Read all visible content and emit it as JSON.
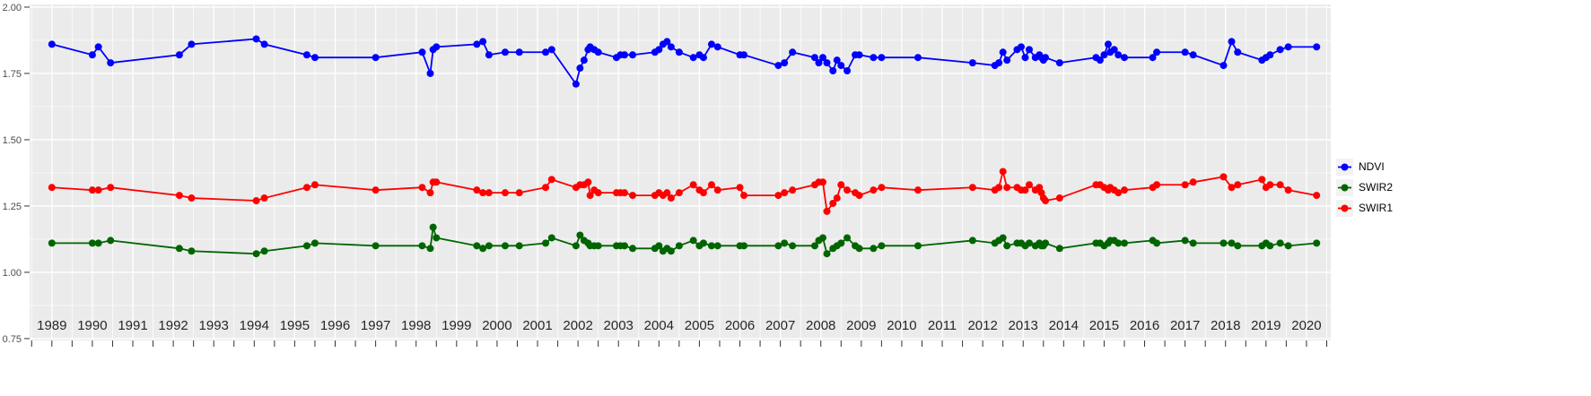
{
  "figure": {
    "background": "#FFFFFF",
    "panel_background": "#EBEBEB",
    "grid_color": "#FFFFFF",
    "axis_text_color": "#4D4D4D",
    "x_axis_text_color": "#262626",
    "tick_color": "#333333"
  },
  "legend": {
    "key_background": "#F2F2F2",
    "items": [
      {
        "label": "NDVI",
        "color": "#0000FF"
      },
      {
        "label": "SWIR2",
        "color": "#006400"
      },
      {
        "label": "SWIR1",
        "color": "#FF0000"
      }
    ]
  },
  "chart_data": {
    "type": "line",
    "title": "",
    "xlabel": "",
    "ylabel": "",
    "grid": true,
    "legend_position": "right",
    "point_radius": 4,
    "line_width": 1.8,
    "xlim": [
      1988.45,
      2020.6
    ],
    "ylim": [
      0.743,
      2.01
    ],
    "x_ticks": {
      "values": [
        1989,
        1990,
        1991,
        1992,
        1993,
        1994,
        1995,
        1996,
        1997,
        1998,
        1999,
        2000,
        2001,
        2002,
        2003,
        2004,
        2005,
        2006,
        2007,
        2008,
        2009,
        2010,
        2011,
        2012,
        2013,
        2014,
        2015,
        2016,
        2017,
        2018,
        2019,
        2020
      ],
      "labels": [
        "1989",
        "1990",
        "1991",
        "1992",
        "1993",
        "1994",
        "1995",
        "1996",
        "1997",
        "1998",
        "1999",
        "2000",
        "2001",
        "2002",
        "2003",
        "2004",
        "2005",
        "2006",
        "2007",
        "2008",
        "2009",
        "2010",
        "2011",
        "2012",
        "2013",
        "2014",
        "2015",
        "2016",
        "2017",
        "2018",
        "2019",
        "2020"
      ]
    },
    "y_ticks": {
      "values": [
        0.75,
        1.0,
        1.25,
        1.5,
        1.75,
        2.0
      ],
      "labels": [
        "0.75",
        "1.00",
        "1.25",
        "1.50",
        "1.75",
        "2.00"
      ]
    },
    "x": [
      1989.0,
      1990.0,
      1990.15,
      1990.45,
      1992.15,
      1992.45,
      1994.05,
      1994.25,
      1995.3,
      1995.5,
      1997.0,
      1998.15,
      1998.35,
      1998.42,
      1998.5,
      1999.5,
      1999.65,
      1999.8,
      2000.2,
      2000.55,
      2001.2,
      2001.35,
      2001.95,
      2002.05,
      2002.15,
      2002.25,
      2002.3,
      2002.4,
      2002.5,
      2002.95,
      2003.05,
      2003.15,
      2003.35,
      2003.9,
      2004.0,
      2004.1,
      2004.2,
      2004.3,
      2004.5,
      2004.85,
      2005.0,
      2005.1,
      2005.3,
      2005.45,
      2006.0,
      2006.1,
      2006.95,
      2007.1,
      2007.3,
      2007.85,
      2007.95,
      2008.05,
      2008.15,
      2008.3,
      2008.4,
      2008.5,
      2008.65,
      2008.85,
      2008.95,
      2009.3,
      2009.5,
      2010.4,
      2011.75,
      2012.3,
      2012.4,
      2012.5,
      2012.6,
      2012.85,
      2012.95,
      2013.05,
      2013.15,
      2013.3,
      2013.4,
      2013.45,
      2013.5,
      2013.55,
      2013.9,
      2014.8,
      2014.9,
      2015.0,
      2015.1,
      2015.15,
      2015.25,
      2015.35,
      2015.5,
      2016.2,
      2016.3,
      2017.0,
      2017.2,
      2017.95,
      2018.15,
      2018.3,
      2018.9,
      2019.0,
      2019.1,
      2019.35,
      2019.55,
      2020.25
    ],
    "series": [
      {
        "name": "NDVI",
        "color": "#0000FF",
        "values": [
          1.86,
          1.82,
          1.85,
          1.79,
          1.82,
          1.86,
          1.88,
          1.86,
          1.82,
          1.81,
          1.81,
          1.83,
          1.75,
          1.84,
          1.85,
          1.86,
          1.87,
          1.82,
          1.83,
          1.83,
          1.83,
          1.84,
          1.71,
          1.77,
          1.8,
          1.84,
          1.85,
          1.84,
          1.83,
          1.81,
          1.82,
          1.82,
          1.82,
          1.83,
          1.84,
          1.86,
          1.87,
          1.85,
          1.83,
          1.81,
          1.82,
          1.81,
          1.86,
          1.85,
          1.82,
          1.82,
          1.78,
          1.79,
          1.83,
          1.81,
          1.79,
          1.81,
          1.79,
          1.76,
          1.8,
          1.78,
          1.76,
          1.82,
          1.82,
          1.81,
          1.81,
          1.81,
          1.79,
          1.78,
          1.79,
          1.83,
          1.8,
          1.84,
          1.85,
          1.81,
          1.84,
          1.81,
          1.82,
          1.81,
          1.8,
          1.81,
          1.79,
          1.81,
          1.8,
          1.82,
          1.86,
          1.83,
          1.84,
          1.82,
          1.81,
          1.81,
          1.83,
          1.83,
          1.82,
          1.78,
          1.87,
          1.83,
          1.8,
          1.81,
          1.82,
          1.84,
          1.85,
          1.85
        ]
      },
      {
        "name": "SWIR2",
        "color": "#006400",
        "values": [
          1.11,
          1.11,
          1.11,
          1.12,
          1.09,
          1.08,
          1.07,
          1.08,
          1.1,
          1.11,
          1.1,
          1.1,
          1.09,
          1.17,
          1.13,
          1.1,
          1.09,
          1.1,
          1.1,
          1.1,
          1.11,
          1.13,
          1.1,
          1.14,
          1.12,
          1.11,
          1.1,
          1.1,
          1.1,
          1.1,
          1.1,
          1.1,
          1.09,
          1.09,
          1.1,
          1.08,
          1.09,
          1.08,
          1.1,
          1.12,
          1.1,
          1.11,
          1.1,
          1.1,
          1.1,
          1.1,
          1.1,
          1.11,
          1.1,
          1.1,
          1.12,
          1.13,
          1.07,
          1.09,
          1.1,
          1.11,
          1.13,
          1.1,
          1.09,
          1.09,
          1.1,
          1.1,
          1.12,
          1.11,
          1.12,
          1.13,
          1.1,
          1.11,
          1.11,
          1.1,
          1.11,
          1.1,
          1.11,
          1.1,
          1.1,
          1.11,
          1.09,
          1.11,
          1.11,
          1.1,
          1.11,
          1.12,
          1.12,
          1.11,
          1.11,
          1.12,
          1.11,
          1.12,
          1.11,
          1.11,
          1.11,
          1.1,
          1.1,
          1.11,
          1.1,
          1.11,
          1.1,
          1.11
        ]
      },
      {
        "name": "SWIR1",
        "color": "#FF0000",
        "values": [
          1.32,
          1.31,
          1.31,
          1.32,
          1.29,
          1.28,
          1.27,
          1.28,
          1.32,
          1.33,
          1.31,
          1.32,
          1.3,
          1.34,
          1.34,
          1.31,
          1.3,
          1.3,
          1.3,
          1.3,
          1.32,
          1.35,
          1.32,
          1.33,
          1.33,
          1.34,
          1.29,
          1.31,
          1.3,
          1.3,
          1.3,
          1.3,
          1.29,
          1.29,
          1.3,
          1.29,
          1.3,
          1.28,
          1.3,
          1.33,
          1.31,
          1.3,
          1.33,
          1.31,
          1.32,
          1.29,
          1.29,
          1.3,
          1.31,
          1.33,
          1.34,
          1.34,
          1.23,
          1.26,
          1.28,
          1.33,
          1.31,
          1.3,
          1.29,
          1.31,
          1.32,
          1.31,
          1.32,
          1.31,
          1.32,
          1.38,
          1.32,
          1.32,
          1.31,
          1.31,
          1.33,
          1.31,
          1.32,
          1.3,
          1.28,
          1.27,
          1.28,
          1.33,
          1.33,
          1.32,
          1.31,
          1.32,
          1.31,
          1.3,
          1.31,
          1.32,
          1.33,
          1.33,
          1.34,
          1.36,
          1.32,
          1.33,
          1.35,
          1.32,
          1.33,
          1.33,
          1.31,
          1.29
        ]
      }
    ]
  }
}
